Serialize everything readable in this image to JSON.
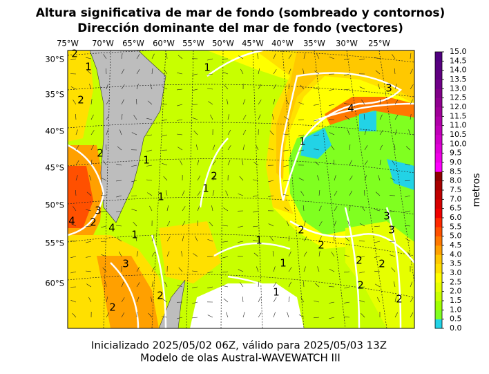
{
  "title": {
    "line1": "Altura significativa de mar de fondo (sombreado y contornos)",
    "line2": "Dirección dominante del mar de fondo (vectores)"
  },
  "longitude_labels": [
    "75°W",
    "70°W",
    "65°W",
    "60°W",
    "55°W",
    "50°W",
    "45°W",
    "40°W",
    "35°W",
    "30°W",
    "25°W"
  ],
  "latitude_labels": [
    "30°S",
    "35°S",
    "40°S",
    "45°S",
    "50°S",
    "55°S",
    "60°S"
  ],
  "contour_labels": [
    "2",
    "1",
    "2",
    "1",
    "3",
    "4",
    "1",
    "2",
    "1",
    "1",
    "2",
    "1",
    "3",
    "4",
    "2",
    "4",
    "1",
    "3",
    "3",
    "2",
    "1",
    "2",
    "1",
    "3",
    "2",
    "2",
    "2",
    "1",
    "2",
    "2",
    "2"
  ],
  "colorbar": {
    "label": "metros",
    "lim": [
      0,
      15
    ],
    "ticks": [
      {
        "value": 0,
        "label": "0.0"
      },
      {
        "value": 0.5,
        "label": "0.5"
      },
      {
        "value": 1,
        "label": "1.0"
      },
      {
        "value": 1.5,
        "label": "1.5"
      },
      {
        "value": 2,
        "label": "2.0"
      },
      {
        "value": 2.5,
        "label": "2.5"
      },
      {
        "value": 3,
        "label": "3.0"
      },
      {
        "value": 3.5,
        "label": "3.5"
      },
      {
        "value": 4,
        "label": "4.0"
      },
      {
        "value": 4.5,
        "label": "4.5"
      },
      {
        "value": 5,
        "label": "5.0"
      },
      {
        "value": 5.5,
        "label": "5.5"
      },
      {
        "value": 6,
        "label": "6.0"
      },
      {
        "value": 6.5,
        "label": "6.5"
      },
      {
        "value": 7,
        "label": "7.0"
      },
      {
        "value": 7.5,
        "label": "7.5"
      },
      {
        "value": 8,
        "label": "8.0"
      },
      {
        "value": 8.5,
        "label": "8.5"
      },
      {
        "value": 9,
        "label": "9.0"
      },
      {
        "value": 9.5,
        "label": "9.5"
      },
      {
        "value": 10,
        "label": "10.0"
      },
      {
        "value": 10.5,
        "label": "10.5"
      },
      {
        "value": 11,
        "label": "11.0"
      },
      {
        "value": 11.5,
        "label": "11.5"
      },
      {
        "value": 12,
        "label": "12.0"
      },
      {
        "value": 12.5,
        "label": "12.5"
      },
      {
        "value": 13,
        "label": "13.0"
      },
      {
        "value": 13.5,
        "label": "13.5"
      },
      {
        "value": 14,
        "label": "14.0"
      },
      {
        "value": 14.5,
        "label": "14.5"
      },
      {
        "value": 15,
        "label": "15.0"
      }
    ],
    "colors": [
      "#22d3e6",
      "#80ff20",
      "#a0ff00",
      "#c8ff00",
      "#e6ff00",
      "#ffff00",
      "#ffe000",
      "#ffc800",
      "#ffa000",
      "#ff7800",
      "#ff5000",
      "#ff2800",
      "#f00000",
      "#d80000",
      "#c00000",
      "#a80000",
      "#900000",
      "#ff00ff",
      "#f000e8",
      "#e000d8",
      "#d000c8",
      "#c000b8",
      "#b000a8",
      "#a00098",
      "#900090",
      "#800088",
      "#700088",
      "#600080",
      "#580080",
      "#500080"
    ]
  },
  "footer": {
    "line1": "Inicializado 2025/05/02 06Z, válido para 2025/05/03 13Z",
    "line2": "Modelo de olas Austral-WAVEWATCH III"
  }
}
